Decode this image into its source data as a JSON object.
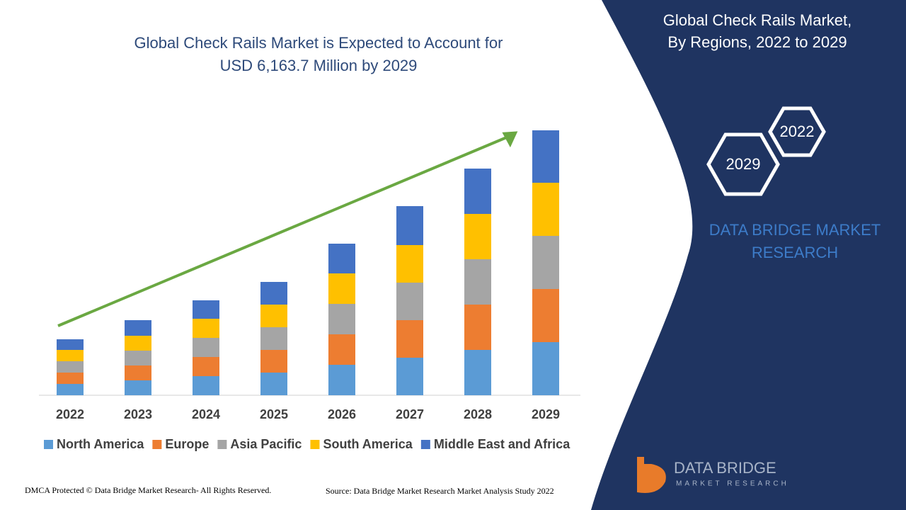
{
  "chart_data": {
    "type": "stacked-bar",
    "title": [
      "Global Check Rails Market is Expected to Account for",
      "USD 6,163.7 Million by 2029"
    ],
    "categories": [
      "2022",
      "2023",
      "2024",
      "2025",
      "2026",
      "2027",
      "2028",
      "2029"
    ],
    "series": [
      {
        "name": "North America",
        "color": "#5b9bd5",
        "values": [
          16,
          21,
          27,
          32,
          43,
          53,
          64,
          75
        ]
      },
      {
        "name": "Europe",
        "color": "#ed7d31",
        "values": [
          16,
          21,
          27,
          32,
          43,
          53,
          64,
          75
        ]
      },
      {
        "name": "Asia Pacific",
        "color": "#a5a5a5",
        "values": [
          16,
          21,
          27,
          32,
          43,
          53,
          64,
          75
        ]
      },
      {
        "name": "South America",
        "color": "#ffc000",
        "values": [
          16,
          21,
          27,
          32,
          43,
          53,
          64,
          75
        ]
      },
      {
        "name": "Middle East and Africa",
        "color": "#4472c4",
        "values": [
          15,
          22,
          26,
          32,
          42,
          55,
          64,
          74
        ]
      }
    ],
    "ylim": [
      0,
      380
    ],
    "legend": "bottom"
  },
  "panel": {
    "title": [
      "Global Check Rails Market,",
      "By Regions, 2022 to 2029"
    ],
    "hex_back": "2022",
    "hex_front": "2029",
    "brand": [
      "DATA BRIDGE MARKET",
      "RESEARCH"
    ]
  },
  "logo": {
    "name": "DATA BRIDGE",
    "tagline": "MARKET RESEARCH"
  },
  "footer": {
    "left": "DMCA Protected © Data Bridge Market Research- All Rights Reserved.",
    "right": "Source: Data Bridge Market Research Market Analysis Study 2022"
  }
}
